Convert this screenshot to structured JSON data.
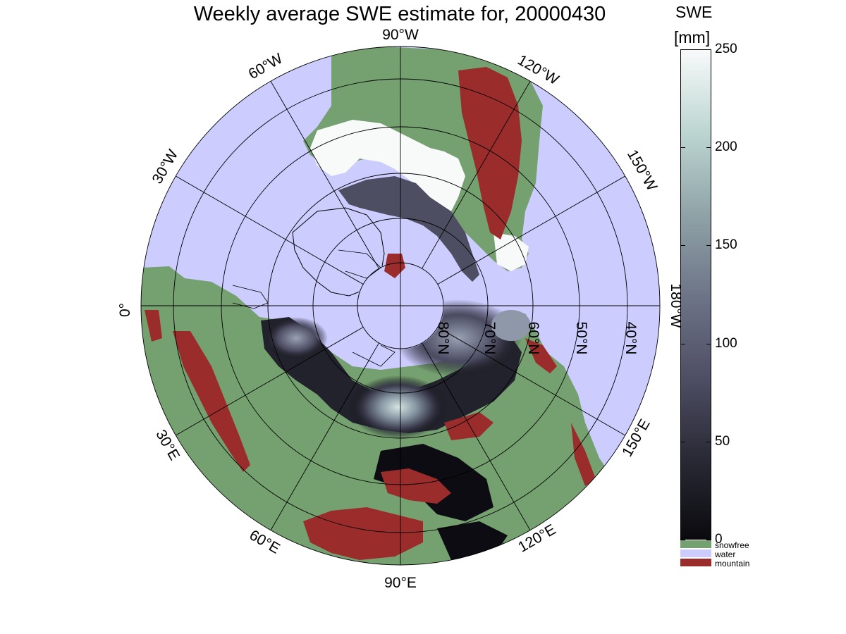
{
  "title": "Weekly average SWE estimate for, 20000430",
  "colorbar": {
    "label": "SWE",
    "units": "[mm]",
    "ticks": [
      "0",
      "50",
      "100",
      "150",
      "200",
      "250"
    ],
    "tick_values": [
      0,
      50,
      100,
      150,
      200,
      250
    ],
    "range": [
      0,
      250
    ],
    "gradient_colors": [
      "#0a0a0e",
      "#2a2a36",
      "#4f4f66",
      "#6e7588",
      "#90a4a8",
      "#bdd6d2",
      "#f8fafa"
    ],
    "categories": [
      {
        "label": "snowfree",
        "color": "#75a070"
      },
      {
        "label": "water",
        "color": "#ccccff"
      },
      {
        "label": "mountain",
        "color": "#9b2c2c"
      }
    ]
  },
  "map": {
    "projection": "north-polar-stereographic",
    "center": "90°N",
    "ocean_color": "#ccccff",
    "land_color": "#75a070",
    "mountain_color": "#9b2c2c",
    "snow_high_color": "#f8fafa",
    "snow_low_color": "#0a0a0e",
    "longitude_labels": [
      "90°W",
      "120°W",
      "150°W",
      "180°W",
      "150°E",
      "120°E",
      "90°E",
      "60°E",
      "30°E",
      "0°",
      "30°W",
      "60°W"
    ],
    "latitude_labels": [
      "80°N",
      "70°N",
      "60°N",
      "50°N",
      "40°N"
    ]
  }
}
